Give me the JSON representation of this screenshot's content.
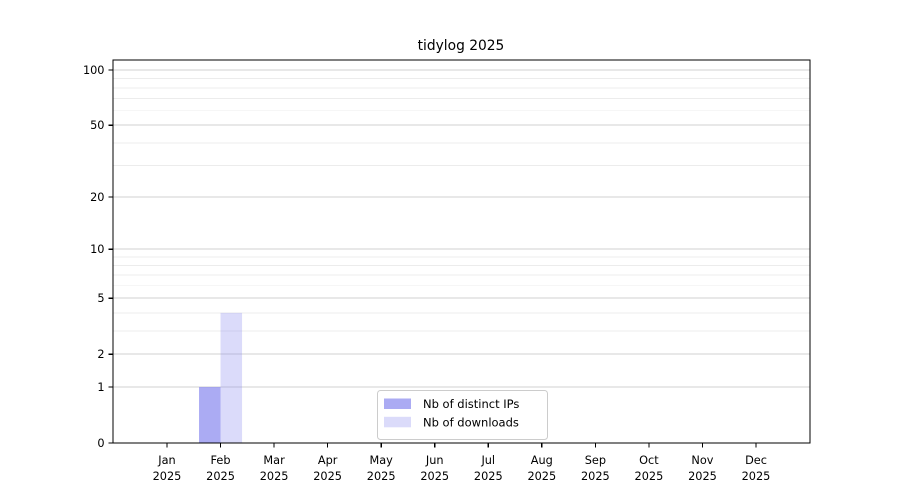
{
  "page": {
    "background": "#ffffff"
  },
  "chart_data": {
    "type": "bar",
    "title": "tidylog 2025",
    "x_categories": [
      "Jan",
      "Feb",
      "Mar",
      "Apr",
      "May",
      "Jun",
      "Jul",
      "Aug",
      "Sep",
      "Oct",
      "Nov",
      "Dec"
    ],
    "x_year": "2025",
    "series": [
      {
        "name": "Nb of distinct IPs",
        "color": "#8888ee",
        "opacity": 0.7,
        "values": [
          0,
          1,
          0,
          0,
          0,
          0,
          0,
          0,
          0,
          0,
          0,
          0
        ]
      },
      {
        "name": "Nb of downloads",
        "color": "#8888ee",
        "opacity": 0.3,
        "values": [
          0,
          4,
          0,
          0,
          0,
          0,
          0,
          0,
          0,
          0,
          0,
          0
        ]
      }
    ],
    "y_scale": "log1p",
    "y_major_ticks": [
      0,
      1,
      2,
      5,
      10,
      20,
      50,
      100
    ],
    "y_minor_ticks": [
      3,
      4,
      6,
      7,
      8,
      9,
      30,
      40,
      60,
      70,
      80,
      90
    ],
    "ylim": [
      0,
      113
    ],
    "grid": "horizontal-only",
    "legend_position": "lower-center",
    "colors": {
      "axis": "#000000",
      "grid_major": "#d2d2d2",
      "grid_minor": "#ececec",
      "legend_border": "#cccccc",
      "legend_fill": "#ffffff",
      "text": "#000000"
    }
  }
}
